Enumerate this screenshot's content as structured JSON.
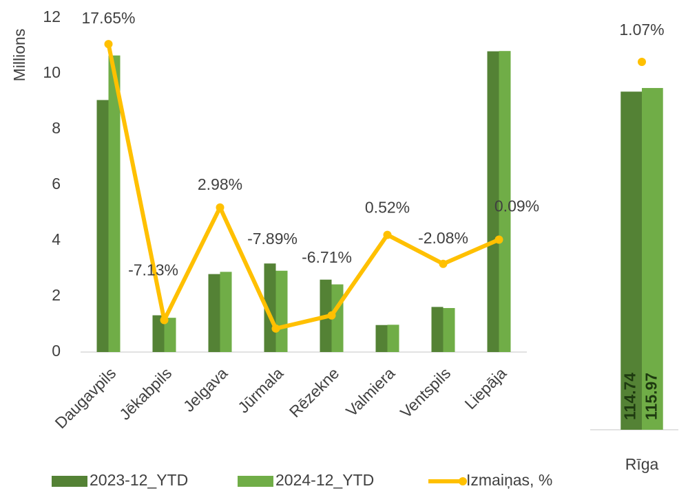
{
  "chart_data": [
    {
      "type": "bar",
      "y_label": "Millions",
      "categories": [
        "Daugavpils",
        "Jēkabpils",
        "Jelgava",
        "Jūrmala",
        "Rēzekne",
        "Valmiera",
        "Ventspils",
        "Liepāja"
      ],
      "series": [
        {
          "name": "2023-12_YTD",
          "color": "#548235",
          "values": [
            9.05,
            1.32,
            2.8,
            3.18,
            2.6,
            0.97,
            1.62,
            10.8
          ]
        },
        {
          "name": "2024-12_YTD",
          "color": "#70ad47",
          "values": [
            10.65,
            1.23,
            2.88,
            2.92,
            2.43,
            0.98,
            1.58,
            10.81
          ]
        },
        {
          "name": "Izmaiņas, %",
          "color": "#ffc000",
          "type": "line",
          "axis": "y2",
          "values": [
            17.65,
            -7.13,
            2.98,
            -7.89,
            -6.71,
            0.52,
            -2.08,
            0.09
          ],
          "value_labels": [
            "17.65%",
            "-7.13%",
            "2.98%",
            "-7.89%",
            "-6.71%",
            "0.52%",
            "-2.08%",
            "0.09%"
          ]
        }
      ],
      "ylim": [
        0,
        12
      ],
      "yticks": [
        0,
        2,
        4,
        6,
        8,
        10,
        12
      ],
      "y2lim": [
        -10,
        20
      ],
      "legend": "bottom"
    },
    {
      "type": "bar",
      "categories": [
        "Rīga"
      ],
      "series": [
        {
          "name": "2023-12_YTD",
          "color": "#548235",
          "values": [
            114.74
          ]
        },
        {
          "name": "2024-12_YTD",
          "color": "#70ad47",
          "values": [
            115.97
          ]
        },
        {
          "name": "Izmaiņas, %",
          "color": "#ffc000",
          "type": "line",
          "axis": "y2",
          "values": [
            1.07
          ],
          "value_labels": [
            "1.07%"
          ]
        }
      ],
      "ylim": [
        0,
        140
      ],
      "y2lim": [
        0,
        1.2
      ]
    }
  ]
}
